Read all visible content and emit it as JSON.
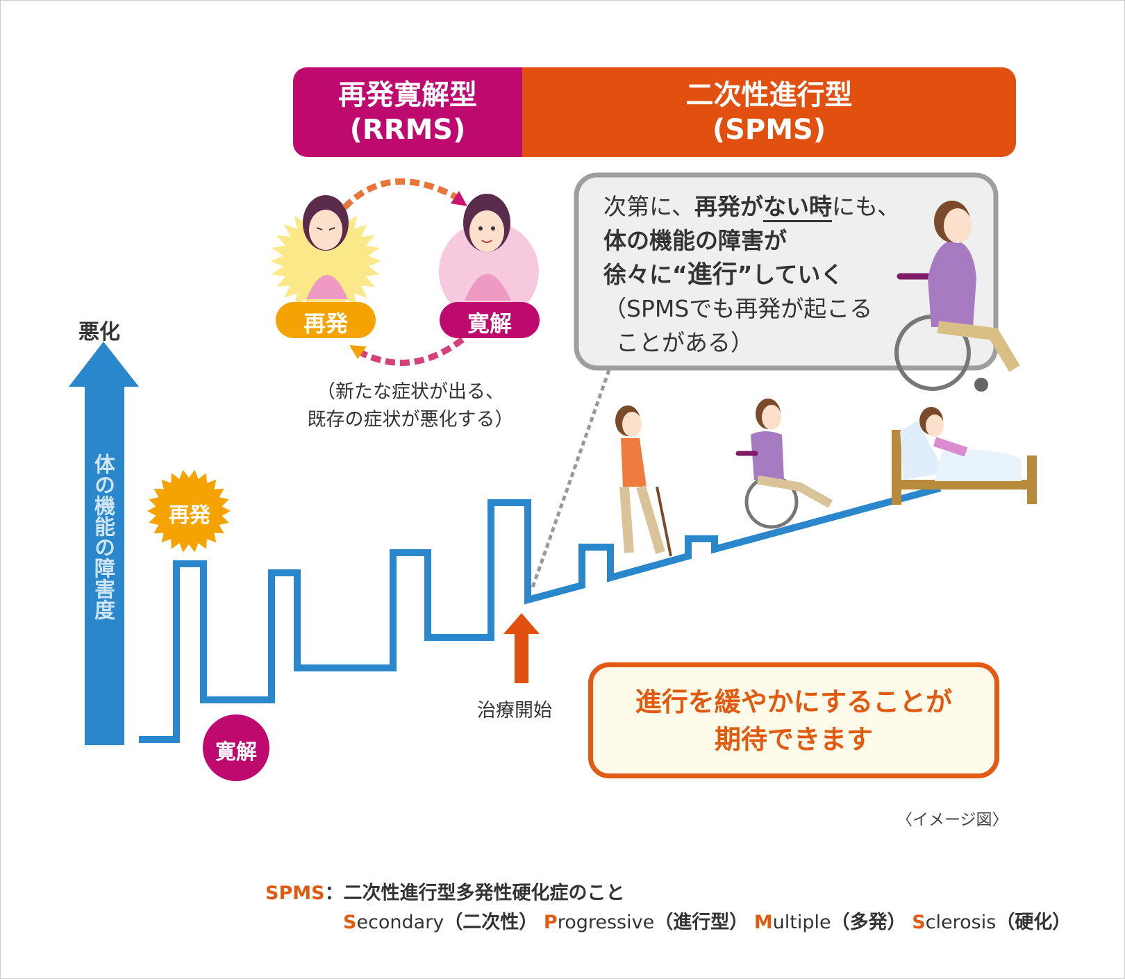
{
  "header": {
    "rrms": {
      "name": "再発寛解型",
      "abbr": "(RRMS)",
      "color": "#be0a6e"
    },
    "spms": {
      "name": "二次性進行型",
      "abbr": "(SPMS)",
      "color": "#e2500f"
    }
  },
  "axis": {
    "top_label": "悪化",
    "label": "体の機能の障害度",
    "color": "#2a87cc"
  },
  "cycle": {
    "relapse": "再発",
    "remission": "寛解",
    "caption_line1": "（新たな症状が出る、",
    "caption_line2": "既存の症状が悪化する）"
  },
  "graph_badges": {
    "relapse": "再発",
    "remission": "寛解"
  },
  "treatment_label": "治療開始",
  "bubble": {
    "line1_a": "次第に、",
    "line1_b": "再発が",
    "line1_c": "ない時",
    "line1_d": "にも、",
    "line2": "体の機能の障害が",
    "line3_a": "徐々に“",
    "line3_b": "進行",
    "line3_c": "”していく",
    "line4": "（SPMSでも再発が起こる",
    "line5": "ことがある）"
  },
  "goal": {
    "line1": "進行を緩やかにすることが",
    "line2": "期待できます"
  },
  "image_note": "〈イメージ図〉",
  "footer": {
    "term": "SPMS",
    "definition": "：二次性進行型多発性硬化症のこと",
    "words": [
      {
        "initial": "S",
        "rest": "econdary",
        "jp": "（二次性）"
      },
      {
        "initial": "P",
        "rest": "rogressive",
        "jp": "（進行型）"
      },
      {
        "initial": "M",
        "rest": "ultiple",
        "jp": "（多発）"
      },
      {
        "initial": "S",
        "rest": "clerosis",
        "jp": "（硬化）"
      }
    ]
  }
}
